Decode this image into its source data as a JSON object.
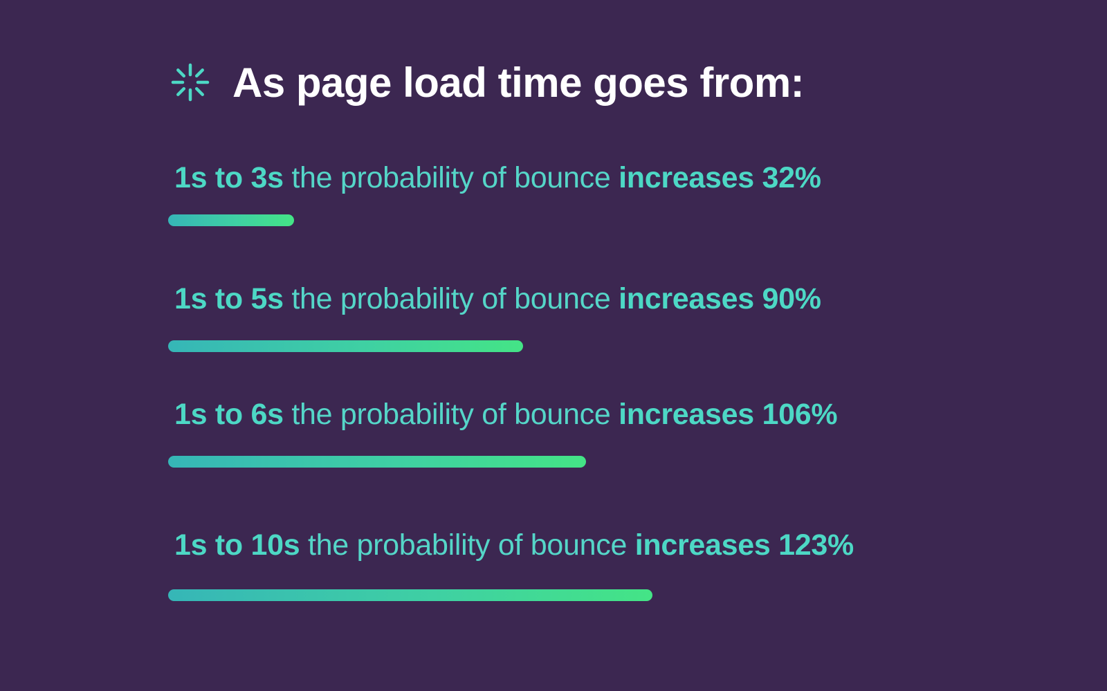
{
  "header": {
    "icon": "loading-spinner-icon",
    "title": "As page load time goes from:"
  },
  "colors": {
    "background": "#3c2751",
    "accent": "#4dd8c5",
    "bar_start": "#36b6b7",
    "bar_end": "#44e486",
    "title": "#ffffff"
  },
  "chart_data": {
    "type": "bar",
    "orientation": "horizontal",
    "title": "As page load time goes from:",
    "xlabel": "",
    "ylabel": "",
    "grid": false,
    "legend": "none",
    "categories": [
      "1s to 3s",
      "1s to 5s",
      "1s to 6s",
      "1s to 10s"
    ],
    "values": [
      32,
      90,
      106,
      123
    ],
    "unit": "%",
    "rows": [
      {
        "range": "1s to 3s",
        "middle": "the probability of bounce",
        "increase": "increases 32%",
        "value": 32
      },
      {
        "range": "1s to 5s",
        "middle": "the probability of bounce",
        "increase": "increases 90%",
        "value": 90
      },
      {
        "range": "1s to 6s",
        "middle": "the probability of bounce",
        "increase": "increases 106%",
        "value": 106
      },
      {
        "range": "1s to 10s",
        "middle": "the probability of bounce",
        "increase": "increases 123%",
        "value": 123
      }
    ]
  }
}
